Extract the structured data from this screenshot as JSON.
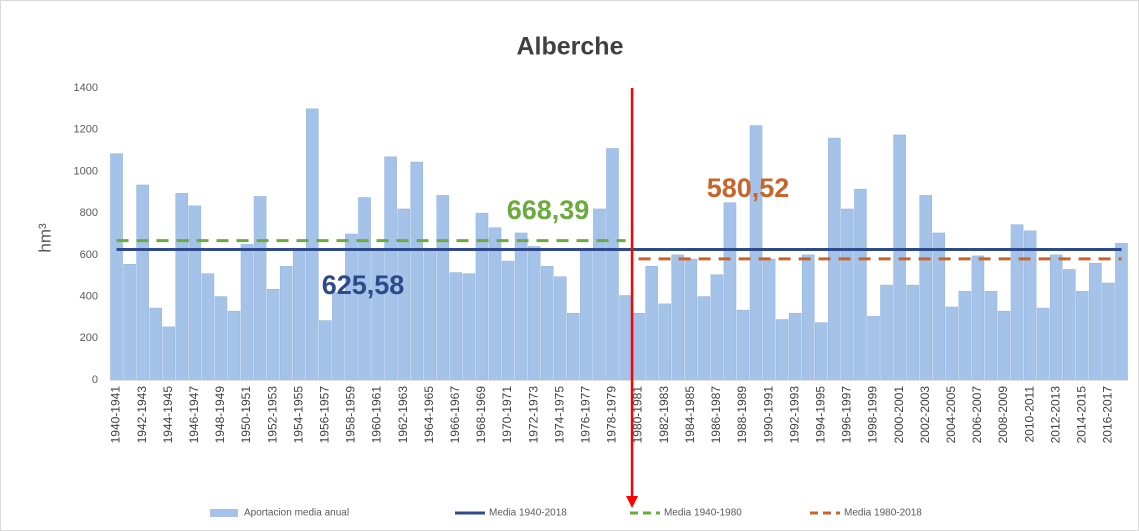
{
  "chart_data": {
    "type": "bar",
    "title": "Alberche",
    "y_label": "hm³",
    "categories": [
      "1940-1941",
      null,
      "1942-1943",
      null,
      "1944-1945",
      null,
      "1946-1947",
      null,
      "1948-1949",
      null,
      "1950-1951",
      null,
      "1952-1953",
      null,
      "1954-1955",
      null,
      "1956-1957",
      null,
      "1958-1959",
      null,
      "1960-1961",
      null,
      "1962-1963",
      null,
      "1964-1965",
      null,
      "1966-1967",
      null,
      "1968-1969",
      null,
      "1970-1971",
      null,
      "1972-1973",
      null,
      "1974-1975",
      null,
      "1976-1977",
      null,
      "1978-1979",
      null,
      "1980-1981",
      null,
      "1982-1983",
      null,
      "1984-1985",
      null,
      "1986-1987",
      null,
      "1988-1989",
      null,
      "1990-1991",
      null,
      "1992-1993",
      null,
      "1994-1995",
      null,
      "1996-1997",
      null,
      "1998-1999",
      null,
      "2000-2001",
      null,
      "2002-2003",
      null,
      "2004-2005",
      null,
      "2006-2007",
      null,
      "2008-2009",
      null,
      "2010-2011",
      null,
      "2012-2013",
      null,
      "2014-2015",
      null,
      "2016-2017",
      null
    ],
    "series": [
      {
        "name": "Aportacion media anual",
        "type": "bar",
        "color": "#a5c3e9",
        "values": [
          1085,
          555,
          935,
          345,
          255,
          895,
          835,
          510,
          400,
          330,
          650,
          880,
          435,
          545,
          620,
          1300,
          285,
          420,
          700,
          875,
          620,
          1070,
          820,
          1045,
          620,
          885,
          515,
          510,
          800,
          730,
          570,
          705,
          640,
          545,
          495,
          320,
          630,
          820,
          1110,
          405,
          320,
          545,
          365,
          600,
          580,
          400,
          505,
          850,
          335,
          1220,
          580,
          290,
          320,
          600,
          275,
          1160,
          820,
          915,
          305,
          455,
          1175,
          455,
          885,
          705,
          350,
          425,
          595,
          425,
          330,
          745,
          715,
          345,
          600,
          530,
          425,
          560,
          465,
          655
        ]
      },
      {
        "name": "Media 1940-2018",
        "type": "line",
        "color": "#2e4a8b",
        "dashed": false,
        "value_label": "625,58",
        "values": [
          625.58,
          625.58,
          625.58,
          625.58,
          625.58,
          625.58,
          625.58,
          625.58,
          625.58,
          625.58,
          625.58,
          625.58,
          625.58,
          625.58,
          625.58,
          625.58,
          625.58,
          625.58,
          625.58,
          625.58,
          625.58,
          625.58,
          625.58,
          625.58,
          625.58,
          625.58,
          625.58,
          625.58,
          625.58,
          625.58,
          625.58,
          625.58,
          625.58,
          625.58,
          625.58,
          625.58,
          625.58,
          625.58,
          625.58,
          625.58,
          625.58,
          625.58,
          625.58,
          625.58,
          625.58,
          625.58,
          625.58,
          625.58,
          625.58,
          625.58,
          625.58,
          625.58,
          625.58,
          625.58,
          625.58,
          625.58,
          625.58,
          625.58,
          625.58,
          625.58,
          625.58,
          625.58,
          625.58,
          625.58,
          625.58,
          625.58,
          625.58,
          625.58,
          625.58,
          625.58,
          625.58,
          625.58,
          625.58,
          625.58,
          625.58,
          625.58,
          625.58,
          625.58
        ]
      },
      {
        "name": "Media 1940-1980",
        "type": "line",
        "color": "#6aab3c",
        "dashed": true,
        "value_label": "668,39",
        "values": [
          668.39,
          668.39,
          668.39,
          668.39,
          668.39,
          668.39,
          668.39,
          668.39,
          668.39,
          668.39,
          668.39,
          668.39,
          668.39,
          668.39,
          668.39,
          668.39,
          668.39,
          668.39,
          668.39,
          668.39,
          668.39,
          668.39,
          668.39,
          668.39,
          668.39,
          668.39,
          668.39,
          668.39,
          668.39,
          668.39,
          668.39,
          668.39,
          668.39,
          668.39,
          668.39,
          668.39,
          668.39,
          668.39,
          668.39,
          668.39,
          null,
          null,
          null,
          null,
          null,
          null,
          null,
          null,
          null,
          null,
          null,
          null,
          null,
          null,
          null,
          null,
          null,
          null,
          null,
          null,
          null,
          null,
          null,
          null,
          null,
          null,
          null,
          null,
          null,
          null,
          null,
          null,
          null,
          null,
          null,
          null,
          null,
          null
        ]
      },
      {
        "name": "Media 1980-2018",
        "type": "line",
        "color": "#c8642a",
        "dashed": true,
        "value_label": "580,52",
        "values": [
          null,
          null,
          null,
          null,
          null,
          null,
          null,
          null,
          null,
          null,
          null,
          null,
          null,
          null,
          null,
          null,
          null,
          null,
          null,
          null,
          null,
          null,
          null,
          null,
          null,
          null,
          null,
          null,
          null,
          null,
          null,
          null,
          null,
          null,
          null,
          null,
          null,
          null,
          null,
          null,
          580.52,
          580.52,
          580.52,
          580.52,
          580.52,
          580.52,
          580.52,
          580.52,
          580.52,
          580.52,
          580.52,
          580.52,
          580.52,
          580.52,
          580.52,
          580.52,
          580.52,
          580.52,
          580.52,
          580.52,
          580.52,
          580.52,
          580.52,
          580.52,
          580.52,
          580.52,
          580.52,
          580.52,
          580.52,
          580.52,
          580.52,
          580.52,
          580.52,
          580.52,
          580.52,
          580.52,
          580.52,
          580.52
        ]
      }
    ],
    "ylim": [
      0,
      1400
    ],
    "yticks": [
      0,
      200,
      400,
      600,
      800,
      1000,
      1200,
      1400
    ],
    "grid": false,
    "legend": "bottom"
  }
}
